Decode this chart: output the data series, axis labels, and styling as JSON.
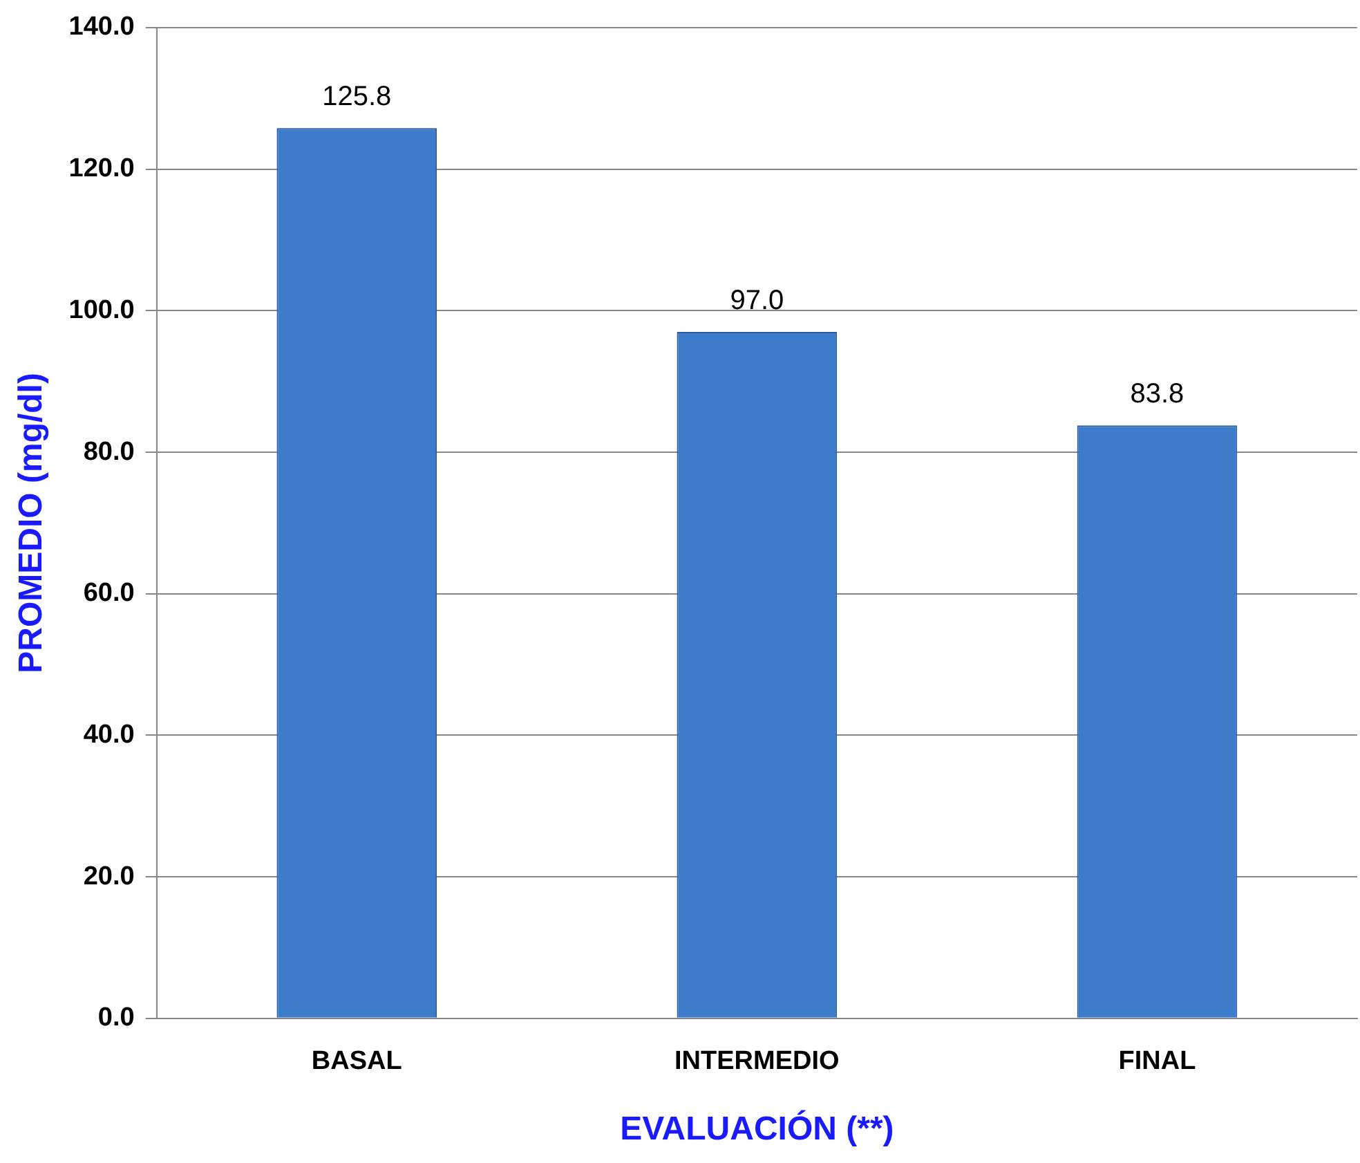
{
  "chart_data": {
    "type": "bar",
    "xlabel": "EVALUACIÓN (**)",
    "ylabel": "PROMEDIO (mg/dl)",
    "categories": [
      "BASAL",
      "INTERMEDIO",
      "FINAL"
    ],
    "values": [
      125.8,
      97.0,
      83.8
    ],
    "color": "#3d7bcb",
    "ylim": [
      0,
      140
    ],
    "yticks": [
      {
        "value": 0,
        "label": "0.0"
      },
      {
        "value": 20,
        "label": "20.0"
      },
      {
        "value": 40,
        "label": "40.0"
      },
      {
        "value": 60,
        "label": "60.0"
      },
      {
        "value": 80,
        "label": "80.0"
      },
      {
        "value": 100,
        "label": "100.0"
      },
      {
        "value": 120,
        "label": "120.0"
      },
      {
        "value": 140,
        "label": "140.0"
      }
    ],
    "value_labels": [
      "125.8",
      "97.0",
      "83.8"
    ],
    "grid": "y",
    "legend": false
  }
}
